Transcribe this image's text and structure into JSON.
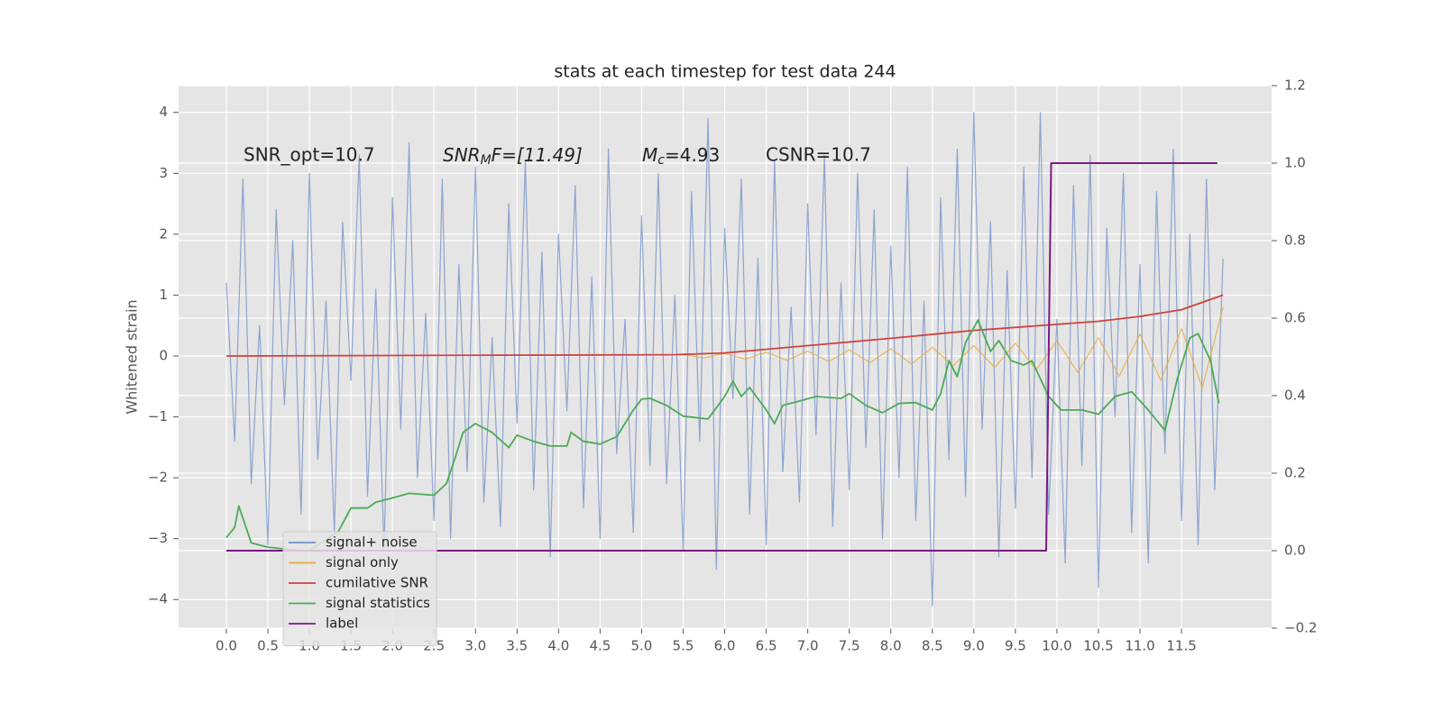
{
  "chart_data": {
    "type": "line",
    "title": "stats at each timestep for test data 244",
    "y_label": "Whitened strain",
    "annotations": [
      {
        "text": "SNR_opt=10.7"
      },
      {
        "main": "SNR",
        "sub": "M",
        "rest": "F=[11.49]"
      },
      {
        "main": "M",
        "sub": "c",
        "rest": "=4.93"
      },
      {
        "text": "CSNR=10.7"
      }
    ],
    "xlim": [
      -0.575,
      12.585
    ],
    "ylim": [
      -4.47,
      4.44
    ],
    "y2lim": [
      -0.2,
      1.2
    ],
    "xticks": [
      {
        "value": 0,
        "label": "0.0"
      },
      0.5,
      {
        "value": 1,
        "label": "1.0"
      },
      1.5,
      {
        "value": 2,
        "label": "2.0"
      },
      2.5,
      {
        "value": 3,
        "label": "3.0"
      },
      3.5,
      {
        "value": 4,
        "label": "4.0"
      },
      4.5,
      {
        "value": 5,
        "label": "5.0"
      },
      5.5,
      {
        "value": 6,
        "label": "6.0"
      },
      6.5,
      {
        "value": 7,
        "label": "7.0"
      },
      7.5,
      {
        "value": 8,
        "label": "8.0"
      },
      8.5,
      {
        "value": 9,
        "label": "9.0"
      },
      9.5,
      {
        "value": 10,
        "label": "10.0"
      },
      10.5,
      {
        "value": 11,
        "label": "11.0"
      },
      11.5
    ],
    "yticks": [
      {
        "value": -4,
        "label": "−4"
      },
      {
        "value": -3,
        "label": "−3"
      },
      {
        "value": -2,
        "label": "−2"
      },
      {
        "value": -1,
        "label": "−1"
      },
      0,
      1,
      2,
      3,
      4
    ],
    "y2ticks": [
      {
        "value": -0.2,
        "label": "−0.2"
      },
      {
        "value": 0,
        "label": "0.0"
      },
      0.2,
      0.4,
      0.6,
      0.8,
      {
        "value": 1,
        "label": "1.0"
      },
      1.2
    ],
    "grid": true,
    "legend": "lower left",
    "series": [
      {
        "name": "signal+ noise",
        "color": "#6f8ec8",
        "x": [
          0,
          0.1,
          0.2,
          0.3,
          0.4,
          0.5,
          0.6,
          0.7,
          0.8,
          0.9,
          1,
          1.1,
          1.2,
          1.3,
          1.4,
          1.5,
          1.6,
          1.7,
          1.8,
          1.9,
          2,
          2.1,
          2.2,
          2.3,
          2.4,
          2.5,
          2.6,
          2.7,
          2.8,
          2.9,
          3,
          3.1,
          3.2,
          3.3,
          3.4,
          3.5,
          3.6,
          3.7,
          3.8,
          3.9,
          4,
          4.1,
          4.2,
          4.3,
          4.4,
          4.5,
          4.6,
          4.7,
          4.8,
          4.9,
          5,
          5.1,
          5.2,
          5.3,
          5.4,
          5.5,
          5.6,
          5.7,
          5.8,
          5.9,
          6,
          6.1,
          6.2,
          6.3,
          6.4,
          6.5,
          6.6,
          6.7,
          6.8,
          6.9,
          7,
          7.1,
          7.2,
          7.3,
          7.4,
          7.5,
          7.6,
          7.7,
          7.8,
          7.9,
          8,
          8.1,
          8.2,
          8.3,
          8.4,
          8.5,
          8.6,
          8.7,
          8.8,
          8.9,
          9,
          9.1,
          9.2,
          9.3,
          9.4,
          9.5,
          9.6,
          9.7,
          9.8,
          9.9,
          10,
          10.1,
          10.2,
          10.3,
          10.4,
          10.5,
          10.6,
          10.7,
          10.8,
          10.9,
          11,
          11.1,
          11.2,
          11.3,
          11.4,
          11.5,
          11.6,
          11.7,
          11.8,
          11.9,
          12
        ],
        "values": [
          1.2,
          -1.4,
          2.9,
          -2.1,
          0.5,
          -3.1,
          2.4,
          -0.8,
          1.9,
          -2.6,
          3.0,
          -1.7,
          0.9,
          -2.9,
          2.2,
          -0.4,
          3.3,
          -2.3,
          1.1,
          -3.2,
          2.6,
          -1.2,
          3.5,
          -2.0,
          0.7,
          -2.7,
          2.9,
          -3.0,
          1.5,
          -1.9,
          3.1,
          -2.4,
          0.3,
          -2.8,
          2.5,
          -1.1,
          3.2,
          -2.2,
          1.7,
          -3.3,
          2.0,
          -0.9,
          2.8,
          -2.5,
          1.3,
          -3.0,
          3.4,
          -1.6,
          0.6,
          -2.9,
          2.3,
          -1.8,
          3.0,
          -2.1,
          1.0,
          -3.2,
          2.7,
          -1.4,
          3.9,
          -3.5,
          2.1,
          -0.7,
          2.9,
          -2.6,
          1.6,
          -3.1,
          3.2,
          -1.9,
          0.8,
          -2.4,
          2.5,
          -1.3,
          3.3,
          -2.8,
          1.2,
          -2.2,
          3.0,
          -1.5,
          2.4,
          -3.0,
          1.8,
          -2.0,
          3.1,
          -2.7,
          0.9,
          -4.1,
          2.6,
          -1.7,
          3.4,
          -2.3,
          4.0,
          -1.2,
          2.2,
          -3.3,
          1.4,
          -2.5,
          3.1,
          -2.0,
          4.0,
          -2.6,
          0.6,
          -3.4,
          2.8,
          -1.8,
          3.3,
          -3.8,
          2.1,
          -1.0,
          3.0,
          -2.9,
          1.5,
          -3.4,
          2.7,
          -1.6,
          3.4,
          -2.7,
          2.0,
          -3.1,
          2.9,
          -2.2,
          1.6
        ]
      },
      {
        "name": "signal only",
        "color": "#e8a93a",
        "x": [
          5.5,
          5.75,
          6,
          6.25,
          6.5,
          6.75,
          7,
          7.25,
          7.5,
          7.75,
          8,
          8.25,
          8.5,
          8.75,
          9,
          9.25,
          9.5,
          9.75,
          10,
          10.25,
          10.5,
          10.75,
          11,
          11.25,
          11.5,
          11.75,
          12
        ],
        "values": [
          0.02,
          -0.03,
          0.04,
          -0.05,
          0.06,
          -0.07,
          0.08,
          -0.09,
          0.1,
          -0.11,
          0.12,
          -0.13,
          0.14,
          -0.16,
          0.17,
          -0.19,
          0.21,
          -0.23,
          0.25,
          -0.27,
          0.3,
          -0.33,
          0.36,
          -0.4,
          0.45,
          -0.52,
          0.8
        ]
      },
      {
        "name": "cumilative SNR",
        "color": "#d0413c",
        "x": [
          0,
          5.4,
          6,
          7,
          8,
          9,
          10,
          10.5,
          11,
          11.5,
          12
        ],
        "values": [
          0,
          0.02,
          0.05,
          0.17,
          0.29,
          0.42,
          0.52,
          0.57,
          0.65,
          0.76,
          1.0
        ]
      },
      {
        "name": "signal statistics",
        "color": "#4caa55",
        "axis": "y2",
        "x": [
          0,
          0.1,
          0.15,
          0.3,
          0.5,
          0.8,
          1.0,
          1.35,
          1.5,
          1.7,
          1.8,
          2.0,
          2.2,
          2.5,
          2.65,
          2.75,
          2.85,
          3.0,
          3.2,
          3.4,
          3.5,
          3.7,
          3.9,
          4.1,
          4.15,
          4.3,
          4.5,
          4.7,
          4.9,
          5.0,
          5.1,
          5.3,
          5.5,
          5.8,
          6.0,
          6.1,
          6.2,
          6.3,
          6.5,
          6.6,
          6.7,
          6.9,
          7.1,
          7.4,
          7.5,
          7.7,
          7.9,
          8.1,
          8.3,
          8.5,
          8.6,
          8.7,
          8.8,
          8.9,
          9.05,
          9.2,
          9.3,
          9.45,
          9.6,
          9.7,
          9.9,
          10.05,
          10.3,
          10.5,
          10.7,
          10.9,
          11.1,
          11.3,
          11.45,
          11.6,
          11.7,
          11.85,
          11.95
        ],
        "values": [
          0.034,
          0.06,
          0.115,
          0.02,
          0.009,
          0.002,
          0.0,
          0.05,
          0.11,
          0.11,
          0.125,
          0.136,
          0.148,
          0.143,
          0.173,
          0.236,
          0.305,
          0.328,
          0.305,
          0.266,
          0.298,
          0.282,
          0.27,
          0.27,
          0.305,
          0.282,
          0.275,
          0.294,
          0.363,
          0.391,
          0.393,
          0.375,
          0.347,
          0.34,
          0.398,
          0.437,
          0.398,
          0.421,
          0.363,
          0.328,
          0.375,
          0.386,
          0.398,
          0.393,
          0.405,
          0.375,
          0.356,
          0.38,
          0.382,
          0.363,
          0.405,
          0.49,
          0.449,
          0.537,
          0.595,
          0.514,
          0.542,
          0.49,
          0.479,
          0.49,
          0.398,
          0.363,
          0.363,
          0.352,
          0.398,
          0.41,
          0.363,
          0.31,
          0.444,
          0.549,
          0.56,
          0.49,
          0.38
        ]
      },
      {
        "name": "label",
        "color": "#7b1a82",
        "axis": "y2",
        "x": [
          0,
          9.87,
          9.93,
          11.93
        ],
        "values": [
          0,
          0,
          1,
          1
        ]
      }
    ]
  }
}
